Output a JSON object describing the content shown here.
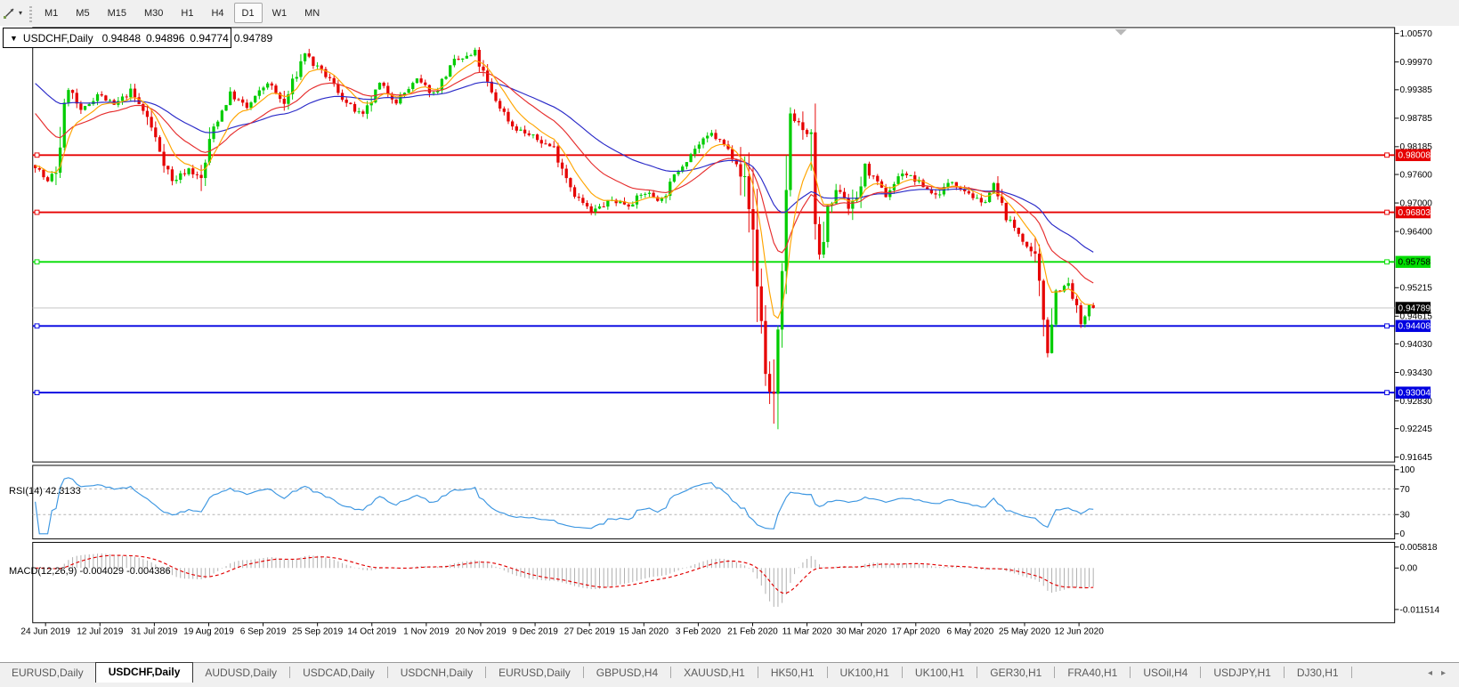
{
  "toolbar": {
    "tool_icon": "line-studies-icon",
    "timeframes": [
      "M1",
      "M5",
      "M15",
      "M30",
      "H1",
      "H4",
      "D1",
      "W1",
      "MN"
    ],
    "active_timeframe": "D1"
  },
  "chart_header": {
    "dropdown_icon": "chevron-down-icon",
    "symbol": "USDCHF,Daily",
    "open": "0.94848",
    "high": "0.94896",
    "low": "0.94774",
    "close": "0.94789"
  },
  "price_axis_labels": [
    "1.00570",
    "0.99970",
    "0.99385",
    "0.98785",
    "0.98185",
    "0.97600",
    "0.97000",
    "0.96400",
    "0.95215",
    "0.94615",
    "0.94030",
    "0.93430",
    "0.92830",
    "0.92245",
    "0.91645"
  ],
  "date_axis_labels": [
    "24 Jun 2019",
    "12 Jul 2019",
    "31 Jul 2019",
    "19 Aug 2019",
    "6 Sep 2019",
    "25 Sep 2019",
    "14 Oct 2019",
    "1 Nov 2019",
    "20 Nov 2019",
    "9 Dec 2019",
    "27 Dec 2019",
    "15 Jan 2020",
    "3 Feb 2020",
    "21 Feb 2020",
    "11 Mar 2020",
    "30 Mar 2020",
    "17 Apr 2020",
    "6 May 2020",
    "25 May 2020",
    "12 Jun 2020"
  ],
  "hlines": [
    {
      "price": 0.98008,
      "label": "0.98008",
      "color": "#E60000",
      "text_color": "#FFFFFF"
    },
    {
      "price": 0.96803,
      "label": "0.96803",
      "color": "#E60000",
      "text_color": "#FFFFFF"
    },
    {
      "price": 0.95758,
      "label": "0.95758",
      "color": "#00DD00",
      "text_color": "#000000"
    },
    {
      "price": 0.94408,
      "label": "0.94408",
      "color": "#0000E0",
      "text_color": "#FFFFFF"
    },
    {
      "price": 0.93004,
      "label": "0.93004",
      "color": "#0000E0",
      "text_color": "#FFFFFF"
    }
  ],
  "current_price": {
    "value": 0.94789,
    "label": "0.94789",
    "line_color": "#C4C4C4",
    "tag_bg": "#000000",
    "tag_text": "#FFFFFF"
  },
  "rsi_panel": {
    "name": "RSI(14)",
    "value": "42.3133",
    "axis_labels": [
      {
        "v": 100,
        "text": "100"
      },
      {
        "v": 70,
        "text": "70"
      },
      {
        "v": 30,
        "text": "30"
      },
      {
        "v": 0,
        "text": "0"
      }
    ],
    "dashed_levels": [
      70,
      30
    ],
    "line_color": "#3C96E1"
  },
  "macd_panel": {
    "name": "MACD(12,26,9)",
    "values": "-0.004029 -0.004386",
    "axis_labels": [
      {
        "v": 0.005818,
        "text": "0.005818"
      },
      {
        "v": 0,
        "text": "0.00"
      },
      {
        "v": -0.011514,
        "text": "-0.011514"
      }
    ],
    "hist_color": "#ADADAD",
    "signal_color": "#E10000"
  },
  "tabs": {
    "items": [
      "EURUSD,Daily",
      "USDCHF,Daily",
      "AUDUSD,Daily",
      "USDCAD,Daily",
      "USDCNH,Daily",
      "EURUSD,Daily",
      "GBPUSD,H4",
      "XAUUSD,H1",
      "HK50,H1",
      "UK100,H1",
      "UK100,H1",
      "GER30,H1",
      "FRA40,H1",
      "USOil,H4",
      "USDJPY,H1",
      "DJ30,H1"
    ],
    "active_index": 1,
    "scroll_left_icon": "chevron-left-icon",
    "scroll_right_icon": "chevron-right-icon"
  },
  "chart_data": {
    "type": "candlestick",
    "symbol": "USDCHF",
    "timeframe": "Daily",
    "bars": 256,
    "ylim": [
      0.91596,
      1.00732
    ],
    "last_ohlc": {
      "o": 0.94848,
      "h": 0.94896,
      "l": 0.94774,
      "c": 0.94789
    },
    "crash_low": {
      "bar": 178,
      "price": 0.9235
    },
    "anchors": [
      [
        0,
        0.978
      ],
      [
        3,
        0.9742
      ],
      [
        5,
        0.9772
      ],
      [
        8,
        0.9945
      ],
      [
        11,
        0.989
      ],
      [
        15,
        0.993
      ],
      [
        19,
        0.9905
      ],
      [
        23,
        0.9935
      ],
      [
        27,
        0.988
      ],
      [
        33,
        0.9745
      ],
      [
        37,
        0.9772
      ],
      [
        40,
        0.9748
      ],
      [
        43,
        0.986
      ],
      [
        47,
        0.993
      ],
      [
        51,
        0.99
      ],
      [
        56,
        0.9955
      ],
      [
        60,
        0.9907
      ],
      [
        65,
        1.0018
      ],
      [
        67,
        0.9992
      ],
      [
        71,
        0.996
      ],
      [
        75,
        0.991
      ],
      [
        79,
        0.988
      ],
      [
        83,
        0.995
      ],
      [
        87,
        0.9915
      ],
      [
        92,
        0.9958
      ],
      [
        96,
        0.993
      ],
      [
        101,
        0.9998
      ],
      [
        106,
        1.0013
      ],
      [
        110,
        0.993
      ],
      [
        115,
        0.9862
      ],
      [
        120,
        0.9838
      ],
      [
        125,
        0.9815
      ],
      [
        130,
        0.9718
      ],
      [
        134,
        0.968
      ],
      [
        139,
        0.9706
      ],
      [
        143,
        0.9697
      ],
      [
        147,
        0.9722
      ],
      [
        151,
        0.9706
      ],
      [
        155,
        0.977
      ],
      [
        159,
        0.9815
      ],
      [
        163,
        0.9845
      ],
      [
        166,
        0.9822
      ],
      [
        170,
        0.978
      ],
      [
        173,
        0.964
      ],
      [
        175,
        0.9452
      ],
      [
        176,
        0.934
      ],
      [
        178,
        0.928
      ],
      [
        180,
        0.95
      ],
      [
        182,
        0.989
      ],
      [
        185,
        0.9858
      ],
      [
        187,
        0.98
      ],
      [
        189,
        0.956
      ],
      [
        191,
        0.9682
      ],
      [
        194,
        0.9732
      ],
      [
        197,
        0.9682
      ],
      [
        200,
        0.9775
      ],
      [
        205,
        0.9716
      ],
      [
        209,
        0.9766
      ],
      [
        213,
        0.9742
      ],
      [
        217,
        0.9716
      ],
      [
        221,
        0.9746
      ],
      [
        225,
        0.9722
      ],
      [
        228,
        0.9696
      ],
      [
        231,
        0.9734
      ],
      [
        234,
        0.967
      ],
      [
        238,
        0.9625
      ],
      [
        241,
        0.957
      ],
      [
        244,
        0.9405
      ],
      [
        246,
        0.9515
      ],
      [
        249,
        0.9526
      ],
      [
        252,
        0.9445
      ],
      [
        255,
        0.94789
      ]
    ],
    "indicators": {
      "ma": [
        {
          "period": 8,
          "color": "#FFA500",
          "seed": 0.978
        },
        {
          "period": 21,
          "color": "#E62E2E",
          "seed": 0.99
        },
        {
          "period": 45,
          "color": "#2A2AC8",
          "seed": 0.996
        }
      ],
      "rsi": {
        "period": 14,
        "value": 42.3133
      },
      "macd": {
        "fast": 12,
        "slow": 26,
        "signal": 9,
        "macd_value": -0.004029,
        "signal_value": -0.004386
      }
    },
    "colors": {
      "up": "#00CC00",
      "down": "#E60000",
      "background": "#FFFFFF",
      "border": "#000000",
      "shift_marker": "#B8B8B8"
    }
  }
}
